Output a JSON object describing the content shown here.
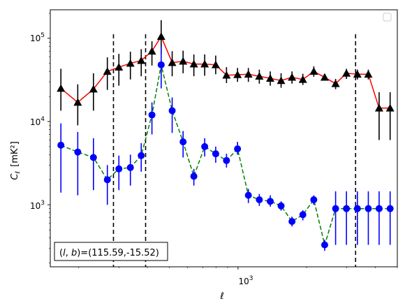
{
  "chart_data": {
    "type": "scatter",
    "xlabel": "ℓ",
    "ylabel_main": "C",
    "ylabel_sub": "ℓ",
    "ylabel_unit": "[mK²]",
    "xscale": "log",
    "yscale": "log",
    "xlim": [
      150,
      5000
    ],
    "ylim": [
      180,
      220000
    ],
    "x_tick_label": {
      "mantissa": "10",
      "exponent": "3",
      "value": 1000
    },
    "y_tick_labels": [
      {
        "mantissa": "10",
        "exponent": "3",
        "value": 1000
      },
      {
        "mantissa": "10",
        "exponent": "4",
        "value": 10000
      },
      {
        "mantissa": "10",
        "exponent": "5",
        "value": 100000
      }
    ],
    "grid": false,
    "legend": "empty box, top-right",
    "annotation": "(l, b)=(115.59,-15.52)",
    "annotation_parts": {
      "paren_open": "(",
      "l": "l",
      "comma": ", ",
      "b": "b",
      "rest": ")=(115.59,-15.52)"
    },
    "vlines": [
      284,
      393,
      3280
    ],
    "series": [
      {
        "marker": "triangle",
        "marker_color": "#000000",
        "line_color": "#ff0000",
        "line_style": "solid",
        "x": [
          167,
          198,
          232,
          267,
          300,
          337,
          376,
          419,
          460,
          514,
          574,
          640,
          714,
          798,
          890,
          995,
          1110,
          1240,
          1385,
          1545,
          1725,
          1925,
          2150,
          2400,
          2680,
          2990,
          3340,
          3730,
          4160,
          4650
        ],
        "y": [
          25000,
          17000,
          24500,
          40000,
          45000,
          50000,
          54000,
          70000,
          105000,
          51000,
          53000,
          49000,
          49000,
          48000,
          36000,
          36500,
          37000,
          35000,
          33000,
          31000,
          34000,
          32000,
          40000,
          34000,
          28500,
          38000,
          37000,
          37000,
          14500,
          14500
        ],
        "y_low": [
          13500,
          9000,
          13500,
          24000,
          27000,
          32000,
          35000,
          47000,
          65000,
          35000,
          38000,
          35000,
          35500,
          37000,
          29000,
          30000,
          30000,
          28500,
          27000,
          25500,
          28500,
          27500,
          34500,
          34000,
          24500,
          32500,
          32000,
          32000,
          6000,
          6000
        ],
        "y_high": [
          43000,
          28000,
          38000,
          59000,
          65000,
          69000,
          74000,
          92000,
          165000,
          70000,
          71000,
          64000,
          64000,
          62000,
          45000,
          44000,
          44000,
          42000,
          40000,
          38000,
          40000,
          37500,
          46000,
          34000,
          32500,
          43000,
          42000,
          42000,
          22500,
          22500
        ]
      },
      {
        "marker": "circle",
        "marker_color": "#0000ff",
        "line_color": "#008000",
        "line_style": "dashed",
        "x": [
          167,
          198,
          232,
          267,
          300,
          337,
          376,
          419,
          460,
          514,
          574,
          640,
          714,
          798,
          890,
          995,
          1110,
          1240,
          1385,
          1545,
          1725,
          1925,
          2150,
          2400,
          2680,
          2990,
          3340,
          3730,
          4160,
          4650
        ],
        "y": [
          5200,
          4300,
          3700,
          2000,
          2700,
          2800,
          3900,
          12000,
          48000,
          13500,
          5700,
          2200,
          5000,
          4100,
          3400,
          4700,
          1300,
          1150,
          1100,
          970,
          630,
          760,
          1150,
          330,
          900,
          900,
          900,
          900,
          900,
          900
        ],
        "y_low": [
          1400,
          1300,
          1500,
          1000,
          1500,
          1700,
          2500,
          7000,
          25000,
          7300,
          3700,
          1700,
          3800,
          3200,
          2800,
          4000,
          1050,
          970,
          950,
          850,
          550,
          650,
          1000,
          280,
          330,
          330,
          330,
          330,
          330,
          330
        ],
        "y_high": [
          9500,
          7500,
          6300,
          3000,
          3900,
          4000,
          5500,
          17000,
          80000,
          19500,
          7700,
          2700,
          6300,
          5000,
          4100,
          5700,
          1550,
          1350,
          1300,
          1100,
          720,
          860,
          1300,
          380,
          1450,
          1450,
          1450,
          1450,
          1450,
          1450
        ]
      }
    ]
  }
}
